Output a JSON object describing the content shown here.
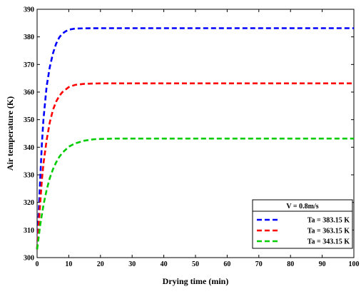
{
  "chart_data": {
    "type": "line",
    "xlabel": "Drying time (min)",
    "ylabel": "Air temperature (K)",
    "xlim": [
      0,
      100
    ],
    "ylim": [
      300,
      390
    ],
    "xticks": [
      0,
      10,
      20,
      30,
      40,
      50,
      60,
      70,
      80,
      90,
      100
    ],
    "yticks": [
      300,
      310,
      320,
      330,
      340,
      350,
      360,
      370,
      380,
      390
    ],
    "grid": false,
    "legend": {
      "placement": "bottom-right",
      "title": "V = 0.8m/s",
      "entries": [
        "Ta = 383.15 K",
        "Ta = 363.15 K",
        "Ta = 343.15 K"
      ]
    },
    "series": [
      {
        "name": "Ta = 383.15 K",
        "color": "#0000ff",
        "line_style": "dashed",
        "x": [
          0,
          0.5,
          1,
          1.5,
          2,
          3,
          4,
          5,
          6,
          7,
          8,
          9,
          10,
          12,
          15,
          20,
          30,
          50,
          100
        ],
        "y": [
          303,
          316,
          329,
          341,
          350,
          362,
          369,
          374,
          377.5,
          379.8,
          381.2,
          382,
          382.6,
          383,
          383.1,
          383.15,
          383.15,
          383.15,
          383.15
        ]
      },
      {
        "name": "Ta = 363.15 K",
        "color": "#ff0000",
        "line_style": "dashed",
        "x": [
          0,
          0.5,
          1,
          1.5,
          2,
          3,
          4,
          5,
          6,
          7,
          8,
          10,
          12,
          15,
          20,
          30,
          50,
          100
        ],
        "y": [
          303,
          312,
          320,
          328,
          334,
          342.5,
          349,
          353.5,
          356.5,
          358.6,
          360,
          361.8,
          362.6,
          363,
          363.15,
          363.15,
          363.15,
          363.15
        ]
      },
      {
        "name": "Ta = 343.15 K",
        "color": "#00cc00",
        "line_style": "dashed",
        "x": [
          0,
          1,
          2,
          3,
          4,
          5,
          6,
          7,
          8,
          10,
          12,
          15,
          18,
          20,
          25,
          30,
          50,
          100
        ],
        "y": [
          303,
          312,
          319,
          324.5,
          328.8,
          332,
          334.5,
          336.5,
          338,
          340.2,
          341.4,
          342.4,
          342.9,
          343,
          343.15,
          343.15,
          343.15,
          343.15
        ]
      }
    ]
  }
}
